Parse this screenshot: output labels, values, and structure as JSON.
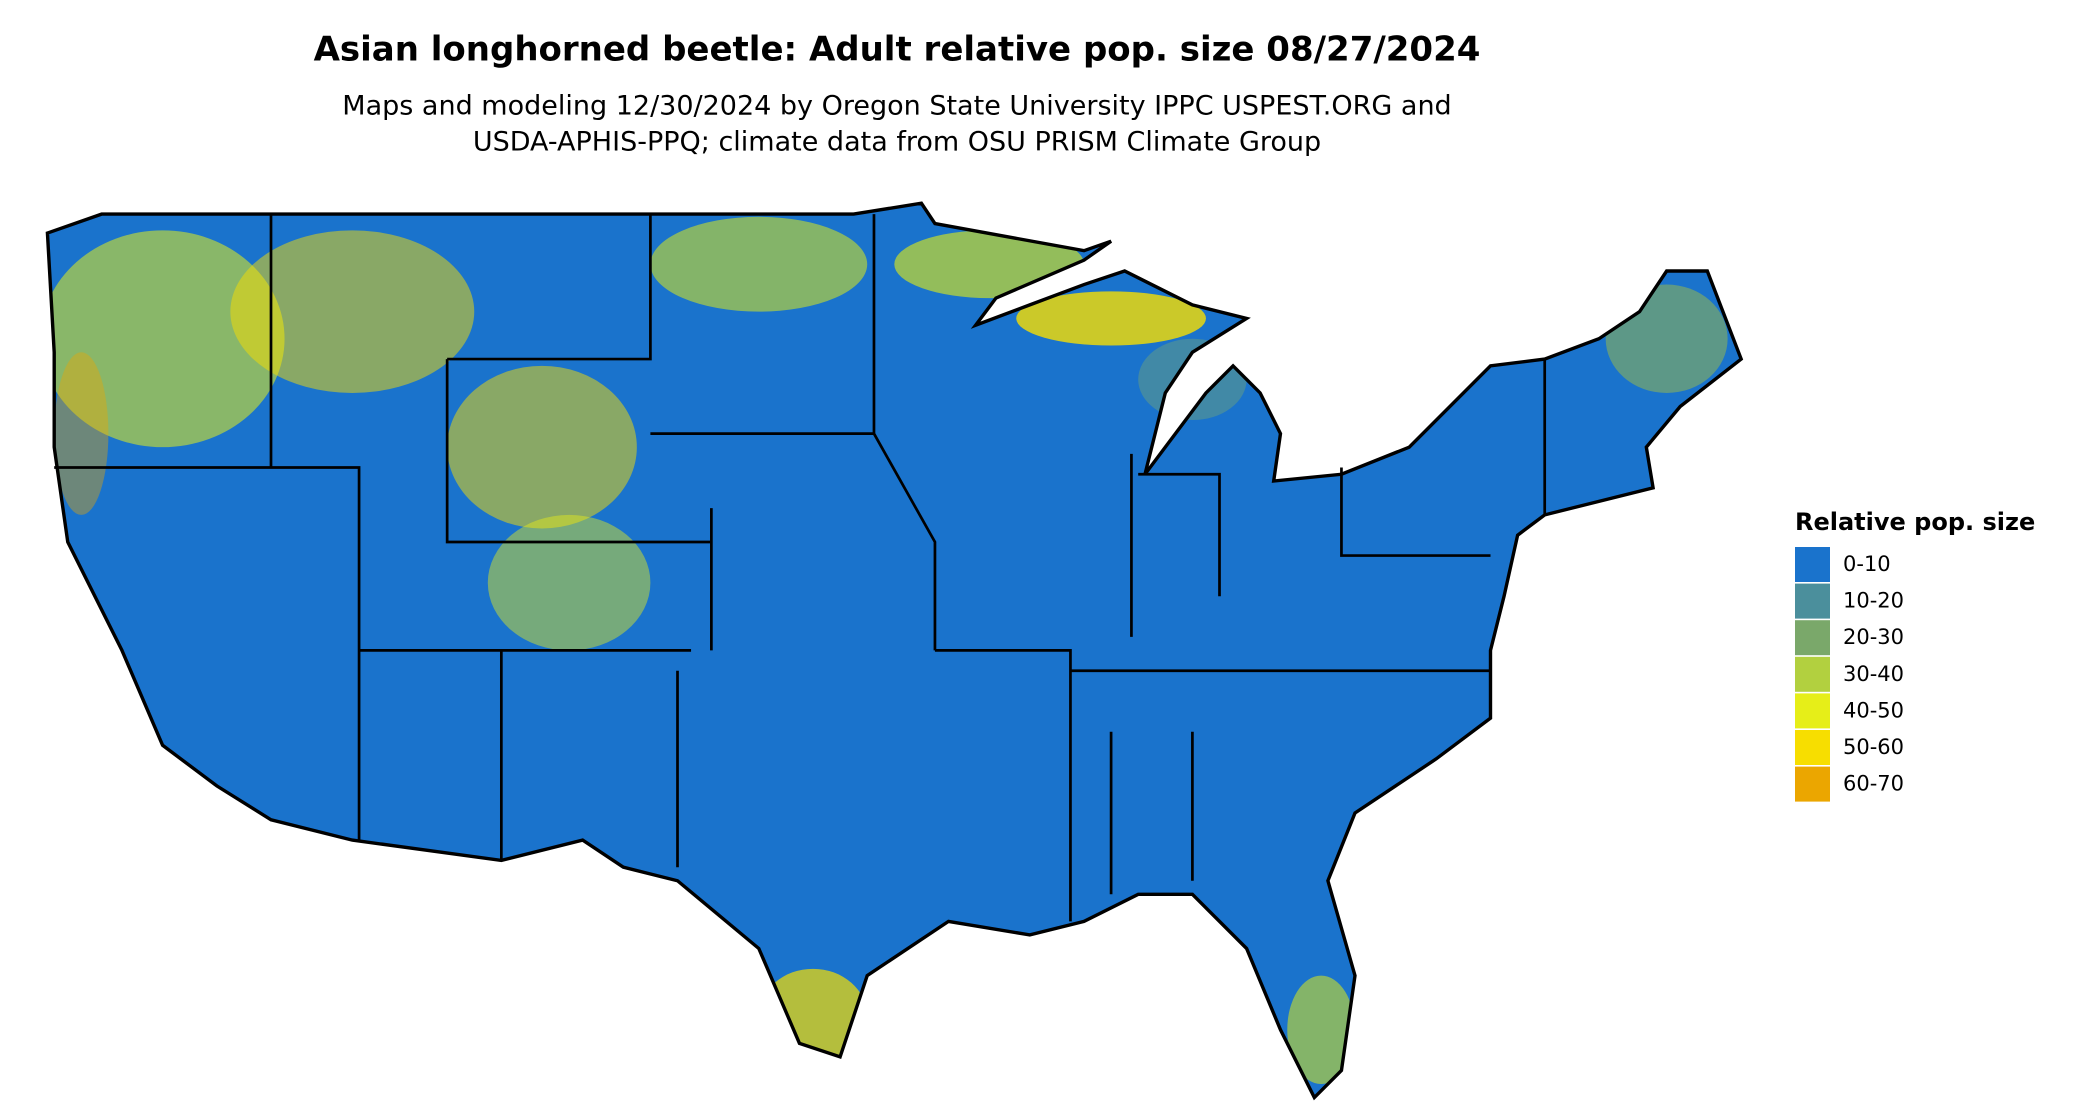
{
  "title": "Asian longhorned beetle: Adult relative pop. size 08/27/2024",
  "subtitle": [
    "Maps and modeling 12/30/2024 by Oregon State University IPPC USPEST.ORG and",
    "USDA-APHIS-PPQ; climate data from OSU PRISM Climate Group"
  ],
  "legend": {
    "title": "Relative pop. size",
    "items": [
      {
        "label": "0-10",
        "color": "#1a73cc"
      },
      {
        "label": "10-20",
        "color": "#4b8f9c"
      },
      {
        "label": "20-30",
        "color": "#7aa86a"
      },
      {
        "label": "30-40",
        "color": "#b2d03f"
      },
      {
        "label": "40-50",
        "color": "#e6ee18"
      },
      {
        "label": "50-60",
        "color": "#f7de00"
      },
      {
        "label": "60-70",
        "color": "#eba600"
      }
    ]
  }
}
